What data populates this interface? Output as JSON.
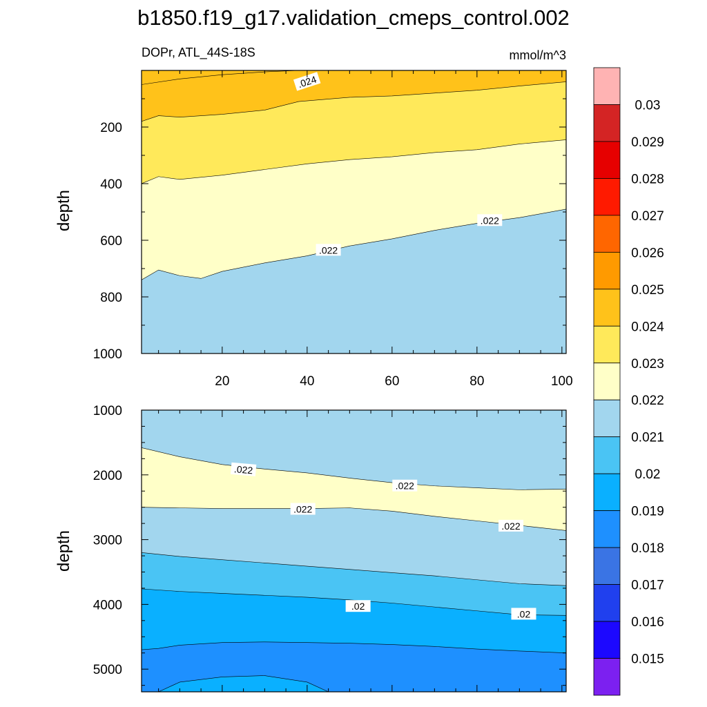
{
  "chart_data": [
    {
      "type": "contour",
      "panel": "upper",
      "title": "b1850.f19_g17.validation_cmeps_control.002",
      "left_string": "DOPr, ATL_44S-18S",
      "right_string": "mmol/m^3",
      "xlabel": "",
      "ylabel": "depth",
      "xlim": [
        1,
        101
      ],
      "ylim": [
        1000,
        0
      ],
      "x_ticks": [
        "20",
        "40",
        "60",
        "80",
        "100"
      ],
      "y_ticks": [
        "200",
        "400",
        "600",
        "800",
        "1000"
      ],
      "contours": [
        {
          "level": 0.024,
          "label": ".024",
          "x": [
            1,
            10,
            20,
            30,
            38
          ],
          "depth": [
            50,
            30,
            15,
            5,
            0
          ]
        },
        {
          "level": 0.0235,
          "label": "",
          "x": [
            1,
            5,
            10,
            20,
            30,
            38,
            50,
            60,
            70,
            80,
            90,
            101
          ],
          "depth": [
            180,
            160,
            165,
            155,
            140,
            110,
            95,
            90,
            80,
            70,
            55,
            40
          ]
        },
        {
          "level": 0.023,
          "label": "",
          "x": [
            1,
            5,
            10,
            20,
            30,
            40,
            50,
            60,
            70,
            80,
            90,
            101
          ],
          "depth": [
            400,
            375,
            385,
            370,
            350,
            330,
            315,
            305,
            290,
            280,
            260,
            245
          ]
        },
        {
          "level": 0.022,
          "label": ".022",
          "x": [
            1,
            5,
            10,
            15,
            20,
            30,
            40,
            50,
            60,
            70,
            80,
            90,
            101
          ],
          "depth": [
            740,
            705,
            725,
            735,
            710,
            680,
            655,
            620,
            595,
            565,
            540,
            520,
            490
          ]
        }
      ],
      "contour_labels": [
        {
          "text": ".024",
          "x": 40,
          "depth": 40,
          "angle": -18
        },
        {
          "text": ".022",
          "x": 45,
          "depth": 635,
          "angle": 0
        },
        {
          "text": ".022",
          "x": 83,
          "depth": 530,
          "angle": 0
        }
      ]
    },
    {
      "type": "contour",
      "panel": "lower",
      "xlabel": "",
      "ylabel": "depth",
      "xlim": [
        1,
        101
      ],
      "ylim": [
        5350,
        1000
      ],
      "y_ticks": [
        "1000",
        "2000",
        "3000",
        "4000",
        "5000"
      ],
      "contours": [
        {
          "level": 0.0215,
          "label": ".022",
          "x": [
            1,
            10,
            20,
            30,
            40,
            50,
            60,
            70,
            80,
            90,
            101
          ],
          "depth": [
            1580,
            1720,
            1840,
            1910,
            1970,
            2050,
            2120,
            2170,
            2200,
            2230,
            2220
          ]
        },
        {
          "level": 0.022,
          "label": ".022",
          "x": [
            1,
            10,
            20,
            30,
            40,
            50,
            60,
            70,
            80,
            90,
            101
          ],
          "depth": [
            2500,
            2510,
            2520,
            2520,
            2520,
            2510,
            2560,
            2640,
            2710,
            2780,
            2860
          ]
        },
        {
          "level": 0.0205,
          "label": "",
          "x": [
            1,
            10,
            20,
            30,
            40,
            50,
            60,
            70,
            80,
            90,
            101
          ],
          "depth": [
            3200,
            3260,
            3310,
            3360,
            3410,
            3460,
            3510,
            3560,
            3620,
            3680,
            3710
          ]
        },
        {
          "level": 0.02,
          "label": ".02",
          "x": [
            1,
            10,
            20,
            30,
            40,
            50,
            60,
            70,
            80,
            90,
            101
          ],
          "depth": [
            3760,
            3800,
            3830,
            3860,
            3890,
            3930,
            3980,
            4040,
            4100,
            4160,
            4170
          ]
        },
        {
          "level": 0.0195,
          "label": "",
          "x": [
            1,
            5,
            10,
            20,
            30,
            40,
            50,
            60,
            70,
            80,
            90,
            101
          ],
          "depth": [
            4700,
            4680,
            4630,
            4590,
            4580,
            4590,
            4600,
            4620,
            4650,
            4690,
            4720,
            4750
          ]
        },
        {
          "level": 0.019,
          "label": "",
          "x": [
            5,
            10,
            20,
            30,
            40,
            45
          ],
          "depth": [
            5350,
            5200,
            5120,
            5100,
            5200,
            5350
          ]
        }
      ],
      "contour_labels": [
        {
          "text": ".022",
          "x": 25,
          "depth": 1920,
          "angle": 5
        },
        {
          "text": ".022",
          "x": 63,
          "depth": 2170,
          "angle": 0
        },
        {
          "text": ".022",
          "x": 39,
          "depth": 2530,
          "angle": 0
        },
        {
          "text": ".022",
          "x": 88,
          "depth": 2790,
          "angle": 0
        },
        {
          "text": ".02",
          "x": 52,
          "depth": 4030,
          "angle": 0
        },
        {
          "text": ".02",
          "x": 91,
          "depth": 4150,
          "angle": 0
        }
      ]
    }
  ],
  "colorbar": {
    "levels": [
      "0.03",
      "0.029",
      "0.028",
      "0.027",
      "0.026",
      "0.025",
      "0.024",
      "0.023",
      "0.022",
      "0.021",
      "0.02",
      "0.019",
      "0.018",
      "0.017",
      "0.016",
      "0.015"
    ],
    "colors_top_to_bottom": [
      "#ffb3b3",
      "#d42424",
      "#e60000",
      "#ff1a00",
      "#ff6600",
      "#ff9a00",
      "#ffc21a",
      "#ffe95a",
      "#ffffc8",
      "#a2d6ee",
      "#4ac4f4",
      "#0ab0ff",
      "#1e90ff",
      "#3a74e4",
      "#2040ee",
      "#1c08ff",
      "#7c20f0"
    ]
  },
  "fill_colors": {
    "orange": "#ffc21a",
    "yellow": "#ffe95a",
    "lightyellow": "#ffffc8",
    "lightblue": "#a2d6ee",
    "skyblue": "#4ac4f4",
    "blue1": "#0ab0ff",
    "blue2": "#1e90ff"
  }
}
